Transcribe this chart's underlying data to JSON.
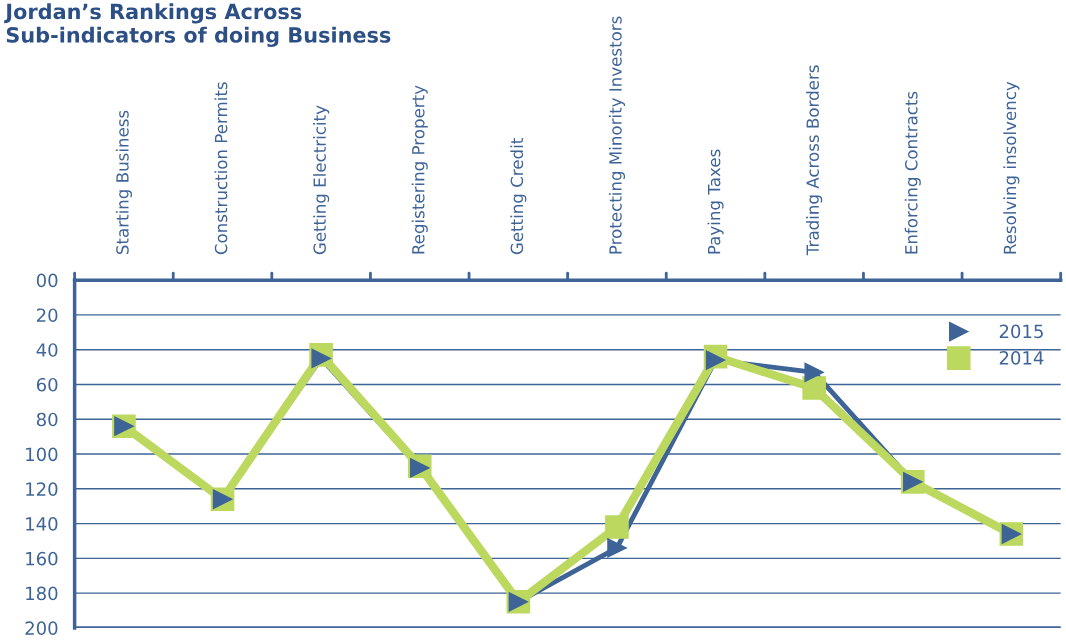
{
  "chart_data": {
    "type": "line",
    "title": "Jordan’s Rankings Across\nSub-indicators of doing Business",
    "categories": [
      "Starting Business",
      "Construction Permits",
      "Getting Electricity",
      "Registering Property",
      "Getting Credit",
      "Protecting Minority Investors",
      "Paying Taxes",
      "Trading Across Borders",
      "Enforcing Contracts",
      "Resolving insolvency"
    ],
    "series": [
      {
        "name": "2015",
        "color": "#3e6497",
        "marker": "triangle",
        "values": [
          84,
          126,
          45,
          108,
          185,
          154,
          46,
          53,
          116,
          146
        ]
      },
      {
        "name": "2014",
        "color": "#bcd85f",
        "marker": "square",
        "values": [
          84,
          126,
          43,
          107,
          185,
          142,
          44,
          62,
          116,
          146
        ]
      }
    ],
    "ylim": [
      200,
      0
    ],
    "yticks": [
      {
        "value": 0,
        "label": "00"
      },
      20,
      40,
      60,
      80,
      100,
      120,
      140,
      160,
      180,
      200
    ],
    "grid": "y",
    "legend": "top right"
  }
}
